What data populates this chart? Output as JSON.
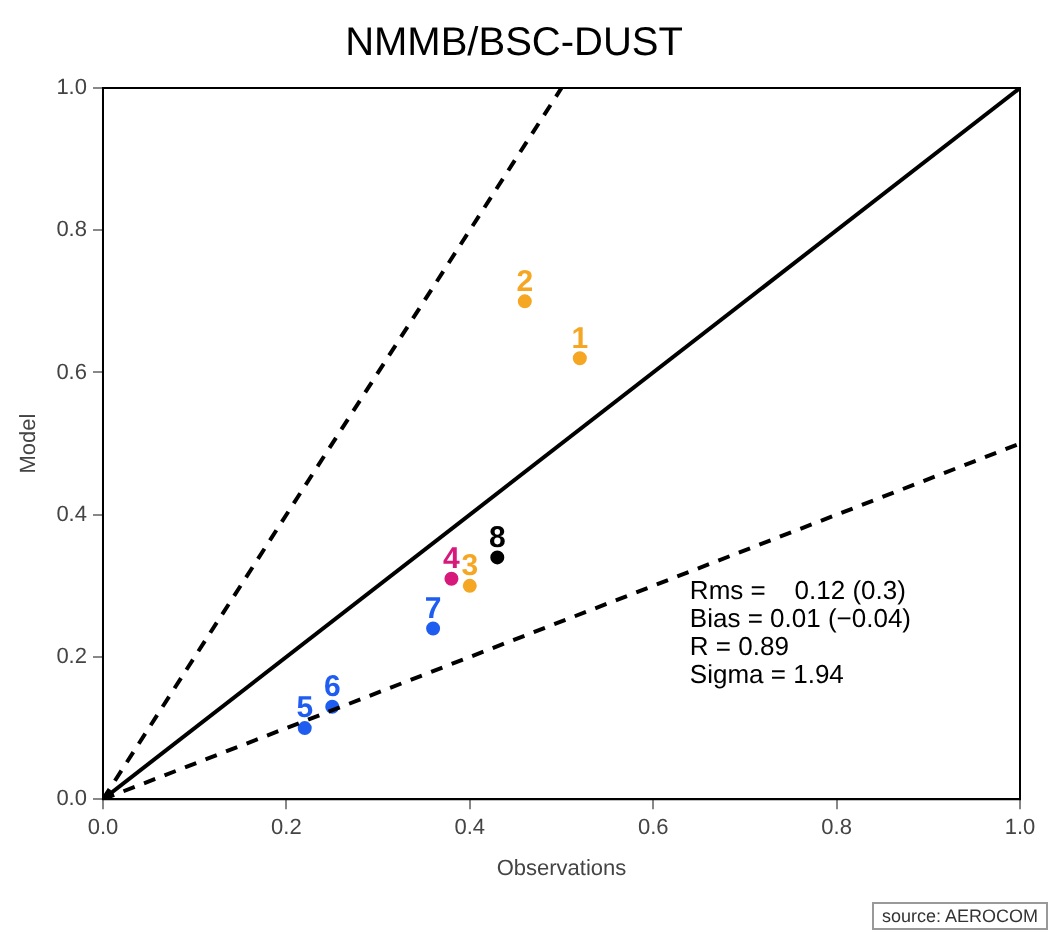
{
  "chart_data": {
    "type": "scatter",
    "title": "NMMB/BSC-DUST",
    "xlabel": "Observations",
    "ylabel": "Model",
    "xlim": [
      0,
      1
    ],
    "ylim": [
      0,
      1
    ],
    "xticks": [
      {
        "value": 0,
        "label": "0.0"
      },
      {
        "value": 0.2,
        "label": "0.2"
      },
      {
        "value": 0.4,
        "label": "0.4"
      },
      {
        "value": 0.6,
        "label": "0.6"
      },
      {
        "value": 0.8,
        "label": "0.8"
      },
      {
        "value": 1,
        "label": "1.0"
      }
    ],
    "yticks": [
      {
        "value": 0,
        "label": "0.0"
      },
      {
        "value": 0.2,
        "label": "0.2"
      },
      {
        "value": 0.4,
        "label": "0.4"
      },
      {
        "value": 0.6,
        "label": "0.6"
      },
      {
        "value": 0.8,
        "label": "0.8"
      },
      {
        "value": 1,
        "label": "1.0"
      }
    ],
    "grid": false,
    "legend": false,
    "marker": "circle",
    "series": [
      {
        "type": "line",
        "color": "#000000",
        "line_style": "dashed",
        "marker": "none",
        "x": [
          0,
          0.5
        ],
        "values": [
          0,
          1
        ]
      },
      {
        "type": "line",
        "color": "#000000",
        "line_style": "solid",
        "marker": "none",
        "x": [
          0,
          1
        ],
        "values": [
          0,
          1
        ]
      },
      {
        "type": "line",
        "color": "#000000",
        "line_style": "dashed",
        "marker": "none",
        "x": [
          0,
          1
        ],
        "values": [
          0,
          0.5
        ]
      },
      {
        "name": "1",
        "color": "#f5a623",
        "x": [
          0.52
        ],
        "values": [
          0.62
        ]
      },
      {
        "name": "2",
        "color": "#f5a623",
        "x": [
          0.46
        ],
        "values": [
          0.7
        ]
      },
      {
        "name": "3",
        "color": "#f5a623",
        "x": [
          0.4
        ],
        "values": [
          0.3
        ]
      },
      {
        "name": "4",
        "color": "#d6197a",
        "x": [
          0.38
        ],
        "values": [
          0.31
        ]
      },
      {
        "name": "5",
        "color": "#1f5cf0",
        "x": [
          0.22
        ],
        "values": [
          0.1
        ]
      },
      {
        "name": "6",
        "color": "#1f5cf0",
        "x": [
          0.25
        ],
        "values": [
          0.13
        ]
      },
      {
        "name": "7",
        "color": "#1f5cf0",
        "x": [
          0.36
        ],
        "values": [
          0.24
        ]
      },
      {
        "name": "8",
        "color": "#000000",
        "x": [
          0.43
        ],
        "values": [
          0.34
        ]
      }
    ],
    "annotations": [
      "Rms =    0.12 (0.3)",
      "Bias = 0.01 (−0.04)",
      "R = 0.89",
      "Sigma = 1.94",
      "source: AEROCOM"
    ]
  }
}
